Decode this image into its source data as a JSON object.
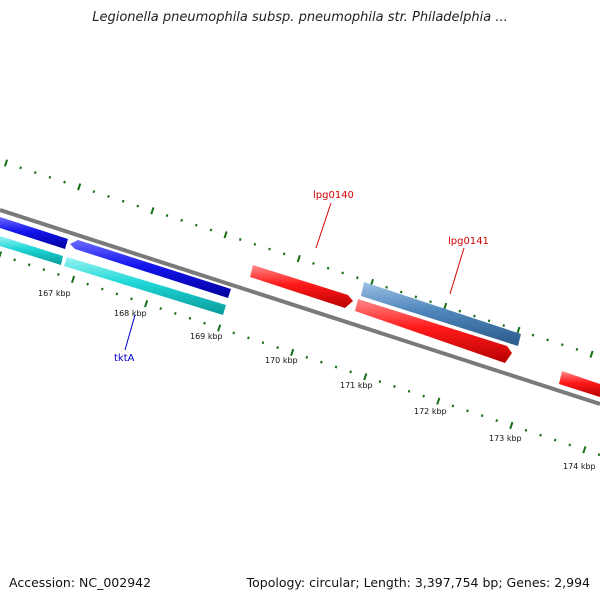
{
  "title": "Legionella pneumophila subsp. pneumophila str. Philadelphia ...",
  "footer": {
    "accession": "Accession: NC_002942",
    "summary": "Topology: circular; Length: 3,397,754 bp; Genes: 2,994"
  },
  "colors": {
    "backbone": "#7a7a7a",
    "forward_cds": "#ff1a1a",
    "reverse_cds": "#1010e0",
    "rna_like": "#1ecfcf",
    "steel_blue": "#4b82b8",
    "tick_green": "#157015",
    "label_red": "#d40000",
    "label_blue": "#0000c8"
  },
  "kbp_labels": [
    "167 kbp",
    "168 kbp",
    "169 kbp",
    "170 kbp",
    "171 kbp",
    "172 kbp",
    "173 kbp",
    "174 kbp"
  ],
  "gene_labels": [
    "lpg0140",
    "lpg0141",
    "tktA"
  ]
}
